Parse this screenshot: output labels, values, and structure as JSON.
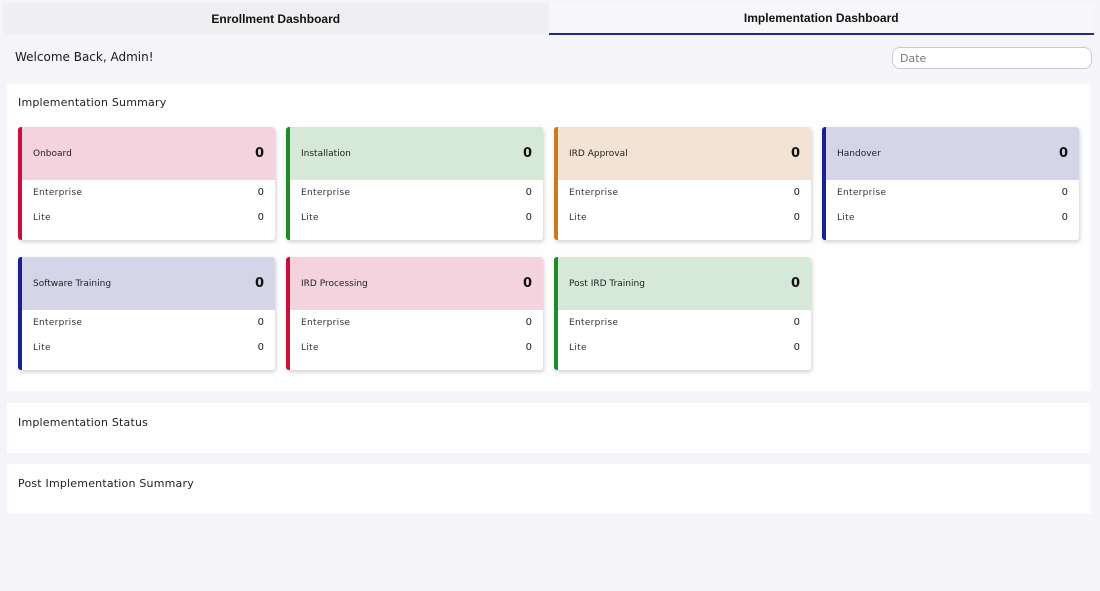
{
  "tabs": [
    {
      "label": "Enrollment Dashboard",
      "active": false
    },
    {
      "label": "Implementation Dashboard",
      "active": true
    }
  ],
  "welcome": "Welcome Back, Admin!",
  "date_filter": {
    "placeholder": "Date",
    "value": ""
  },
  "sections": {
    "summary_title": "Implementation Summary",
    "status_title": "Implementation Status",
    "post_title": "Post Implementation Summary"
  },
  "cards": [
    {
      "title": "Onboard",
      "total": "0",
      "color": "#c8103e",
      "rows": [
        {
          "label": "Enterprise",
          "value": "0"
        },
        {
          "label": "Lite",
          "value": "0"
        }
      ]
    },
    {
      "title": "Installation",
      "total": "0",
      "color": "#1f8a2a",
      "rows": [
        {
          "label": "Enterprise",
          "value": "0"
        },
        {
          "label": "Lite",
          "value": "0"
        }
      ]
    },
    {
      "title": "IRD Approval",
      "total": "0",
      "color": "#c77b1c",
      "rows": [
        {
          "label": "Enterprise",
          "value": "0"
        },
        {
          "label": "Lite",
          "value": "0"
        }
      ]
    },
    {
      "title": "Handover",
      "total": "0",
      "color": "#1a2091",
      "rows": [
        {
          "label": "Enterprise",
          "value": "0"
        },
        {
          "label": "Lite",
          "value": "0"
        }
      ]
    },
    {
      "title": "Software Training",
      "total": "0",
      "color": "#1a2091",
      "rows": [
        {
          "label": "Enterprise",
          "value": "0"
        },
        {
          "label": "Lite",
          "value": "0"
        }
      ]
    },
    {
      "title": "IRD Processing",
      "total": "0",
      "color": "#c8103e",
      "rows": [
        {
          "label": "Enterprise",
          "value": "0"
        },
        {
          "label": "Lite",
          "value": "0"
        }
      ]
    },
    {
      "title": "Post IRD Training",
      "total": "0",
      "color": "#1f8a2a",
      "rows": [
        {
          "label": "Enterprise",
          "value": "0"
        },
        {
          "label": "Lite",
          "value": "0"
        }
      ]
    }
  ]
}
